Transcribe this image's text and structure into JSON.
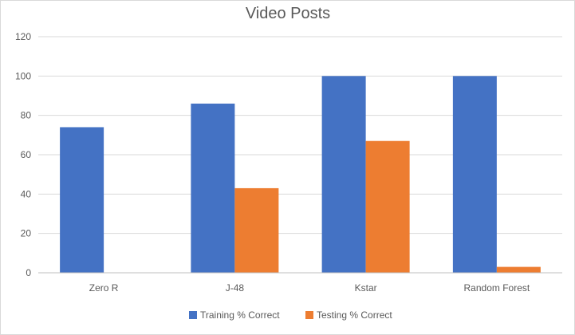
{
  "chart_data": {
    "type": "bar",
    "title": "Video Posts",
    "xlabel": "",
    "ylabel": "",
    "categories": [
      "Zero R",
      "J-48",
      "Kstar",
      "Random Forest"
    ],
    "series": [
      {
        "name": "Training % Correct",
        "values": [
          74,
          86,
          100,
          100
        ],
        "color": "#4472c4"
      },
      {
        "name": "Testing % Correct",
        "values": [
          0,
          43,
          67,
          3
        ],
        "color": "#ed7d31"
      }
    ],
    "ylim": [
      0,
      120
    ],
    "yticks": [
      0,
      20,
      40,
      60,
      80,
      100,
      120
    ],
    "grid": true,
    "legend_position": "bottom"
  }
}
